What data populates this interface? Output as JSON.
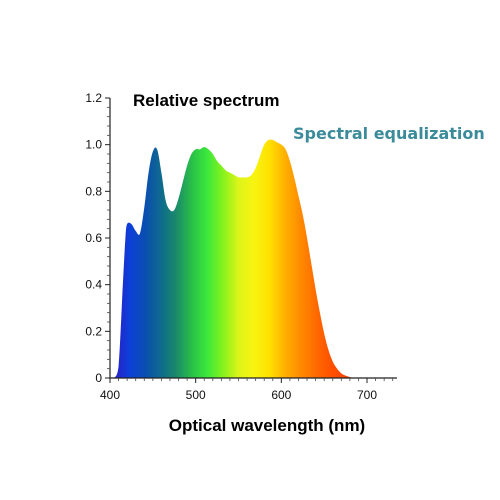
{
  "chart_data": {
    "type": "area",
    "title": "Relative spectrum",
    "xlabel": "Optical wavelength (nm)",
    "ylabel": "",
    "annotation": "Spectral equalization",
    "annotation_color": "#3b8b9b",
    "xlim": [
      400,
      735
    ],
    "ylim": [
      0,
      1.2
    ],
    "x_ticks": [
      "400",
      "500",
      "600",
      "700"
    ],
    "y_ticks": [
      "0",
      "0.2",
      "0.4",
      "0.6",
      "0.8",
      "1.0",
      "1.2"
    ],
    "grid": false,
    "x": [
      405,
      410,
      415,
      418,
      420,
      425,
      430,
      435,
      440,
      445,
      450,
      455,
      460,
      465,
      470,
      475,
      480,
      485,
      490,
      495,
      500,
      505,
      510,
      515,
      520,
      525,
      530,
      535,
      540,
      545,
      550,
      555,
      560,
      565,
      570,
      575,
      580,
      585,
      590,
      595,
      600,
      605,
      610,
      615,
      620,
      625,
      630,
      635,
      640,
      645,
      650,
      655,
      660,
      665,
      670,
      675,
      680,
      685,
      690,
      695
    ],
    "values": [
      0.0,
      0.05,
      0.4,
      0.6,
      0.66,
      0.66,
      0.63,
      0.62,
      0.73,
      0.88,
      0.97,
      0.98,
      0.88,
      0.76,
      0.72,
      0.72,
      0.77,
      0.84,
      0.91,
      0.96,
      0.98,
      0.98,
      0.99,
      0.98,
      0.96,
      0.93,
      0.91,
      0.89,
      0.88,
      0.87,
      0.86,
      0.86,
      0.86,
      0.87,
      0.9,
      0.95,
      1.0,
      1.02,
      1.02,
      1.01,
      1.0,
      0.98,
      0.93,
      0.86,
      0.78,
      0.7,
      0.6,
      0.49,
      0.38,
      0.28,
      0.19,
      0.12,
      0.07,
      0.04,
      0.02,
      0.01,
      0.004,
      0.001,
      0.0,
      0.0
    ],
    "gradient_colors": [
      "#2a1ec8",
      "#0c40d8",
      "#0a4eb0",
      "#0e6a8e",
      "#1a8a6a",
      "#2ac048",
      "#3ce83c",
      "#86f21c",
      "#dcf41a",
      "#f8f410",
      "#ffe000",
      "#ffb000",
      "#ff8a00",
      "#ff6a00",
      "#ff5000",
      "#fb4404",
      "#f03c08"
    ]
  }
}
